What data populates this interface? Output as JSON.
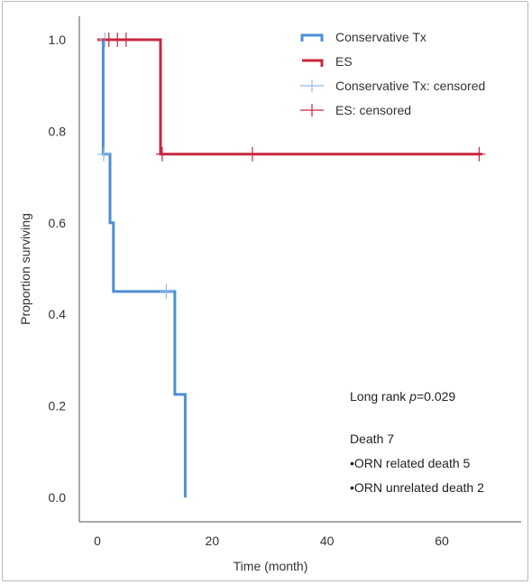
{
  "chart_data": {
    "type": "line",
    "xlabel": "Time (month)",
    "ylabel": "Proportion surviving",
    "xlim": [
      -3,
      70
    ],
    "ylim": [
      0,
      1.05
    ],
    "x_ticks": [
      "0",
      "20",
      "40",
      "60"
    ],
    "x_tick_values": [
      0,
      20,
      40,
      60
    ],
    "y_ticks": [
      "0.0",
      "0.2",
      "0.4",
      "0.6",
      "0.8",
      "1.0"
    ],
    "y_tick_values": [
      0,
      0.2,
      0.4,
      0.6,
      0.8,
      1.0
    ],
    "grid": false,
    "legend_position": "top-right",
    "series": [
      {
        "name": "Conservative Tx",
        "color": "#4d8ed3",
        "type": "step",
        "points": [
          [
            1,
            1.0
          ],
          [
            1,
            0.75
          ],
          [
            2.2,
            0.75
          ],
          [
            2.2,
            0.6
          ],
          [
            2.8,
            0.6
          ],
          [
            2.8,
            0.45
          ],
          [
            13.5,
            0.45
          ],
          [
            13.5,
            0.225
          ],
          [
            15.3,
            0.225
          ],
          [
            15.3,
            0.0
          ]
        ],
        "censored_name": "Conservative Tx: censored",
        "censored_color": "#8fbfe8",
        "censored": [
          [
            1.3,
            1.0
          ],
          [
            1.1,
            0.75
          ],
          [
            12,
            0.45
          ]
        ]
      },
      {
        "name": "ES",
        "color": "#c8273f",
        "type": "step",
        "points": [
          [
            0,
            1.0
          ],
          [
            11,
            1.0
          ],
          [
            11,
            0.75
          ],
          [
            67,
            0.75
          ]
        ],
        "censored_name": "ES: censored",
        "censored_color": "#c8273f",
        "censored": [
          [
            2,
            1.0
          ],
          [
            3.5,
            1.0
          ],
          [
            5,
            1.0
          ],
          [
            11.3,
            0.75
          ],
          [
            27,
            0.75
          ],
          [
            66.5,
            0.75
          ]
        ]
      }
    ],
    "annotations": {
      "test_prefix": "Long rank ",
      "test_p": "p",
      "test_value": "=0.029",
      "death": "Death 7",
      "related": "•ORN related death 5",
      "unrelated": "•ORN unrelated death 2"
    }
  }
}
